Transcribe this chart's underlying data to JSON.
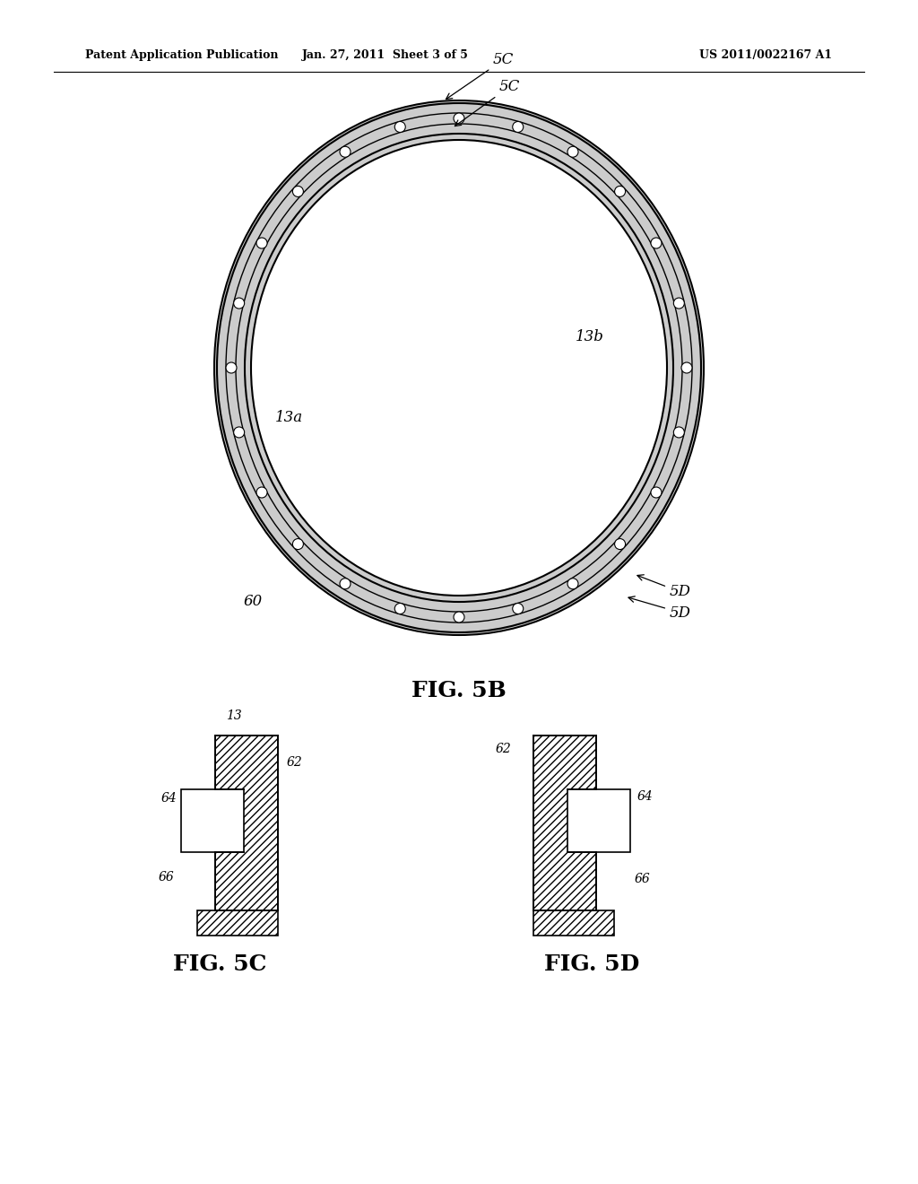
{
  "bg_color": "#ffffff",
  "header_left": "Patent Application Publication",
  "header_center": "Jan. 27, 2011  Sheet 3 of 5",
  "header_right": "US 2011/0022167 A1",
  "fig5b_label": "FIG. 5B",
  "fig5c_label": "FIG. 5C",
  "fig5d_label": "FIG. 5D",
  "num_holes": 24,
  "label_color": "#222222"
}
